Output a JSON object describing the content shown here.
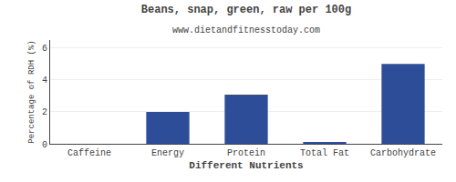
{
  "chart_data": {
    "type": "bar",
    "title": "Beans, snap, green, raw per 100g",
    "subtitle": "www.dietandfitnesstoday.com",
    "xlabel": "Different Nutrients",
    "ylabel": "Percentage of RDH (%)",
    "categories": [
      "Caffeine",
      "Energy",
      "Protein",
      "Total Fat",
      "Carbohydrate"
    ],
    "values": [
      0,
      2.0,
      3.08,
      0.06,
      5.0
    ],
    "color": "#2e4d99",
    "ylim": [
      0,
      6.5
    ],
    "yticks": [
      0,
      2,
      4,
      6
    ],
    "grid": true
  }
}
